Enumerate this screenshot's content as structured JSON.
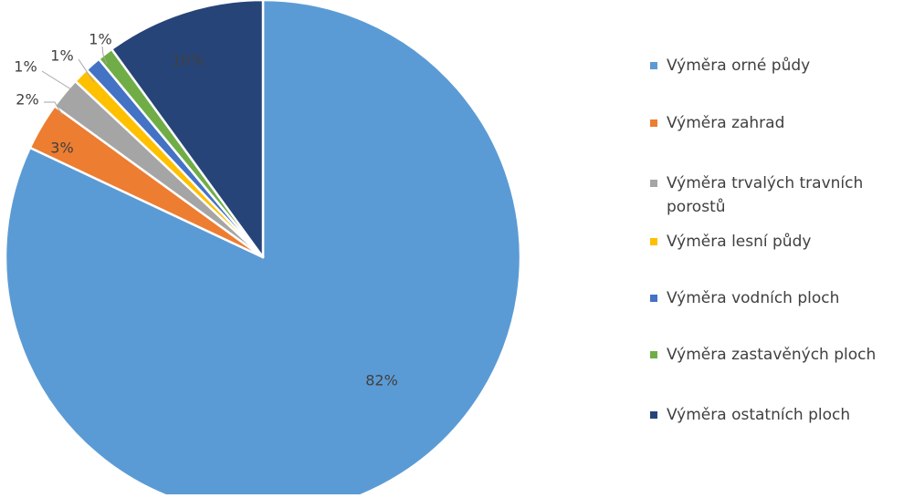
{
  "chart_data": {
    "type": "pie",
    "title": "",
    "start_angle_deg": 0,
    "direction": "clockwise",
    "legend_position": "right",
    "slices": [
      {
        "name": "Výměra orné půdy",
        "value": 82,
        "label": "82%",
        "color": "#5b9bd5"
      },
      {
        "name": "Výměra zahrad",
        "value": 3,
        "label": "3%",
        "color": "#ed7d31"
      },
      {
        "name": "Výměra trvalých travních porostů",
        "value": 2,
        "label": "2%",
        "color": "#a5a5a5"
      },
      {
        "name": "Výměra lesní půdy",
        "value": 1,
        "label": "1%",
        "color": "#ffc000"
      },
      {
        "name": "Výměra vodních ploch",
        "value": 1,
        "label": "1%",
        "color": "#4472c4"
      },
      {
        "name": "Výměra zastavěných ploch",
        "value": 1,
        "label": "1%",
        "color": "#70ad47"
      },
      {
        "name": "Výměra ostatních ploch",
        "value": 10,
        "label": "10%",
        "color": "#264478"
      }
    ]
  }
}
